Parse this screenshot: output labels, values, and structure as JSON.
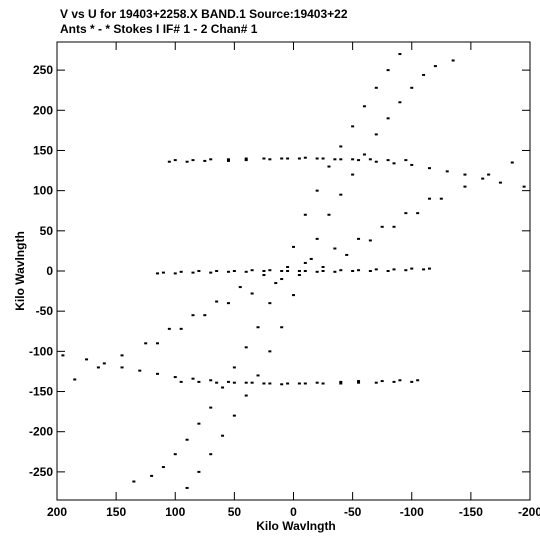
{
  "chart_data": {
    "type": "scatter",
    "title_line1": "V vs U for 19403+2258.X BAND.1   Source:19403+22",
    "title_line2": "Ants * - *     Stokes I  IF# 1 - 2  Chan# 1",
    "xlabel": "Kilo Wavlngth",
    "ylabel": "Kilo Wavlngth",
    "xlim": [
      200,
      -200
    ],
    "ylim": [
      -285,
      285
    ],
    "x_ticks": [
      200,
      150,
      100,
      50,
      0,
      -50,
      -100,
      -150,
      -200
    ],
    "x_tick_labels": [
      "200",
      "150",
      "100",
      "50",
      "0",
      "-50",
      "-100",
      "-150",
      "-200"
    ],
    "y_ticks": [
      -250,
      -200,
      -150,
      -100,
      -50,
      0,
      50,
      100,
      150,
      200,
      250
    ],
    "y_tick_labels": [
      "-250",
      "-200",
      "-150",
      "-100",
      "-50",
      "0",
      "50",
      "100",
      "150",
      "200",
      "250"
    ],
    "grid": false,
    "marker_color": "#000000",
    "tracks": [
      {
        "description": "horizontal-upper",
        "x": [
          105,
          90,
          75,
          55,
          40,
          20,
          5,
          -10,
          -25,
          -40,
          -55,
          -70,
          -85,
          -100,
          -115,
          -130,
          -145,
          -160,
          -175,
          -195
        ],
        "y": [
          136,
          136,
          137,
          137,
          138,
          139,
          140,
          141,
          140,
          139,
          138,
          136,
          134,
          132,
          128,
          124,
          120,
          115,
          110,
          105
        ]
      },
      {
        "description": "horizontal-lower",
        "x": [
          95,
          80,
          65,
          50,
          35,
          20,
          5,
          -10,
          -25,
          -40,
          -55,
          -70,
          -85,
          -100
        ],
        "y": [
          -138,
          -138,
          -139,
          -139,
          -139,
          -140,
          -140,
          -140,
          -140,
          -140,
          -139,
          -139,
          -138,
          -138
        ]
      },
      {
        "description": "diagonal-steep",
        "x": [
          90,
          80,
          70,
          60,
          50,
          40,
          30,
          20,
          10,
          0,
          -10,
          -20,
          -30,
          -40,
          -50,
          -60,
          -70,
          -80,
          -90,
          -100,
          -110,
          -120,
          -135
        ],
        "y": [
          -270,
          -250,
          -228,
          -205,
          -180,
          -155,
          -130,
          -100,
          -70,
          -30,
          10,
          40,
          70,
          95,
          120,
          145,
          170,
          190,
          210,
          228,
          244,
          255,
          262
        ]
      },
      {
        "description": "diagonal-shallow",
        "x": [
          185,
          165,
          145,
          125,
          105,
          85,
          65,
          45,
          25,
          5,
          -15,
          -35,
          -55,
          -75,
          -95,
          -115
        ],
        "y": [
          -135,
          -120,
          -105,
          -90,
          -72,
          -55,
          -38,
          -20,
          -5,
          5,
          15,
          28,
          40,
          55,
          72,
          90
        ]
      },
      {
        "description": "zero-axis-row",
        "x": [
          110,
          95,
          80,
          65,
          50,
          35,
          20,
          5,
          -10,
          -25,
          -40,
          -55,
          -70,
          -85,
          -100,
          -115
        ],
        "y": [
          -2,
          -1,
          0,
          0,
          0,
          1,
          1,
          0,
          0,
          0,
          1,
          1,
          2,
          2,
          3,
          3
        ]
      }
    ]
  }
}
